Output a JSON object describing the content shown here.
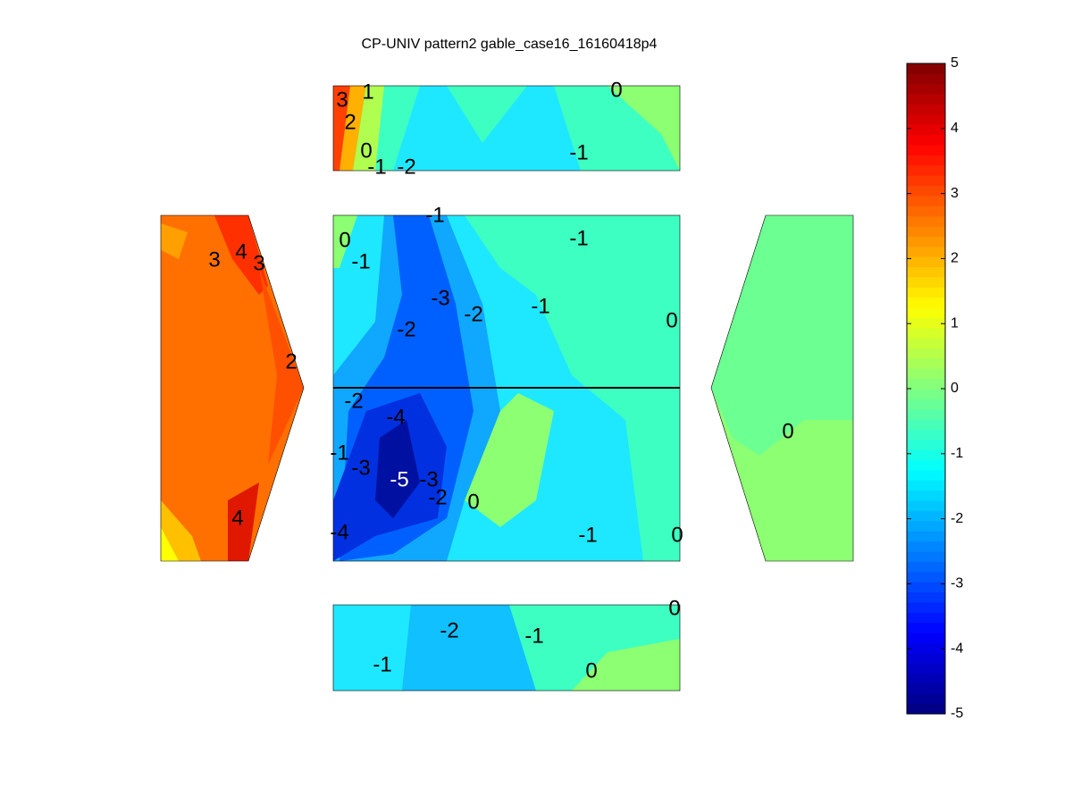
{
  "chart_data": {
    "type": "contour",
    "title": "CP-UNIV pattern2 gable_case16_16160418p4",
    "colormap": "jet",
    "clim": [
      -5,
      5
    ],
    "cticks": [
      -5,
      -4,
      -3,
      -2,
      -1,
      0,
      1,
      2,
      3,
      4,
      5
    ],
    "contour_labels": [
      3,
      1,
      2,
      0,
      -1,
      -2,
      0,
      -1,
      4,
      3,
      3,
      2,
      4,
      -1,
      -1,
      0,
      -1,
      -3,
      -2,
      -1,
      -2,
      0,
      -2,
      -4,
      -1,
      -3,
      -5,
      -3,
      -2,
      0,
      -1,
      -4,
      0,
      0,
      -2,
      -1,
      0,
      -1,
      0
    ]
  }
}
